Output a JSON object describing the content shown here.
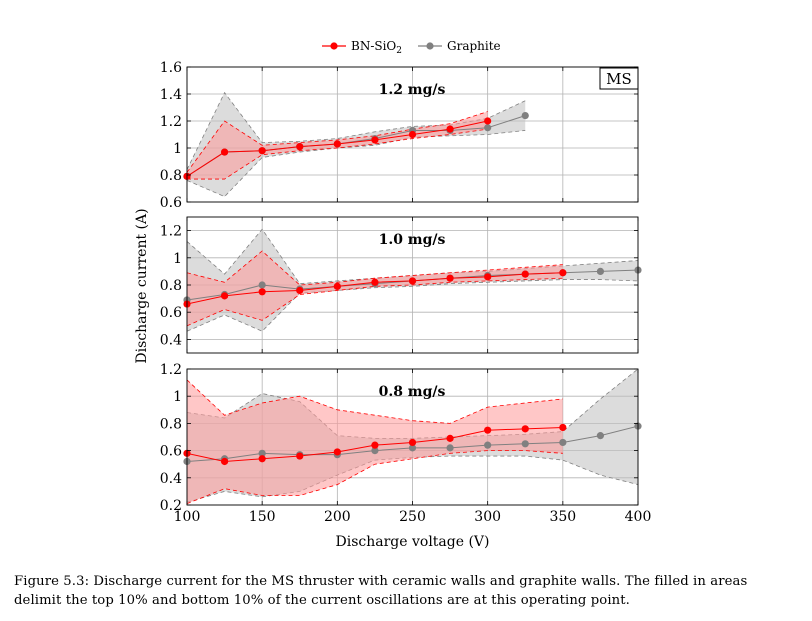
{
  "legend": [
    {
      "name": "BN-SiO",
      "sub": "2",
      "color": "#ff0000"
    },
    {
      "name": "Graphite",
      "sub": "",
      "color": "#808080"
    }
  ],
  "band_colors": {
    "bn_fill": "#ff9999",
    "bn_edge": "#ff0000",
    "gr_fill": "#bfbfbf",
    "gr_edge": "#808080"
  },
  "chart_data": {
    "type": "line",
    "shared_xlabel": "Discharge voltage (V)",
    "shared_ylabel": "Discharge current (A)",
    "x_ticks": [
      100,
      150,
      200,
      250,
      300,
      350,
      400
    ],
    "xlim": [
      100,
      400
    ],
    "panels": [
      {
        "title": "1.2 mg/s",
        "box_label": "MS",
        "ylim": [
          0.6,
          1.6
        ],
        "y_ticks": [
          0.6,
          0.8,
          1.0,
          1.2,
          1.4,
          1.6
        ],
        "series": [
          {
            "name": "BN-SiO2",
            "x": [
              100,
              125,
              150,
              175,
              200,
              225,
              250,
              275,
              300
            ],
            "y": [
              0.79,
              0.97,
              0.98,
              1.01,
              1.03,
              1.06,
              1.1,
              1.14,
              1.2
            ],
            "upper": [
              0.82,
              1.2,
              1.02,
              1.04,
              1.06,
              1.09,
              1.14,
              1.18,
              1.27
            ],
            "lower": [
              0.77,
              0.77,
              0.95,
              0.98,
              1.0,
              1.03,
              1.07,
              1.1,
              1.14
            ]
          },
          {
            "name": "Graphite",
            "x": [
              100,
              125,
              150,
              175,
              200,
              225,
              250,
              275,
              300,
              325
            ],
            "y": [
              0.79,
              0.97,
              0.98,
              1.01,
              1.03,
              1.07,
              1.13,
              1.13,
              1.15,
              1.24
            ],
            "upper": [
              0.84,
              1.41,
              1.04,
              1.05,
              1.07,
              1.12,
              1.16,
              1.17,
              1.22,
              1.35
            ],
            "lower": [
              0.76,
              0.64,
              0.93,
              0.97,
              1.0,
              1.02,
              1.08,
              1.09,
              1.1,
              1.13
            ]
          }
        ]
      },
      {
        "title": "1.0 mg/s",
        "box_label": "",
        "ylim": [
          0.3,
          1.3
        ],
        "y_ticks": [
          0.4,
          0.6,
          0.8,
          1.0,
          1.2
        ],
        "series": [
          {
            "name": "BN-SiO2",
            "x": [
              100,
              125,
              150,
              175,
              200,
              225,
              250,
              275,
              300,
              325,
              350
            ],
            "y": [
              0.66,
              0.72,
              0.75,
              0.76,
              0.79,
              0.82,
              0.83,
              0.85,
              0.86,
              0.88,
              0.89
            ],
            "upper": [
              0.89,
              0.82,
              1.05,
              0.8,
              0.82,
              0.85,
              0.87,
              0.89,
              0.91,
              0.93,
              0.95
            ],
            "lower": [
              0.5,
              0.62,
              0.54,
              0.73,
              0.76,
              0.79,
              0.8,
              0.82,
              0.83,
              0.84,
              0.85
            ]
          },
          {
            "name": "Graphite",
            "x": [
              100,
              125,
              150,
              175,
              200,
              225,
              250,
              275,
              300,
              325,
              350,
              375,
              400
            ],
            "y": [
              0.69,
              0.73,
              0.8,
              0.77,
              0.79,
              0.81,
              0.83,
              0.85,
              0.87,
              0.88,
              0.89,
              0.9,
              0.91
            ],
            "upper": [
              1.12,
              0.88,
              1.21,
              0.81,
              0.83,
              0.85,
              0.87,
              0.89,
              0.9,
              0.92,
              0.94,
              0.96,
              0.98
            ],
            "lower": [
              0.46,
              0.58,
              0.46,
              0.74,
              0.76,
              0.78,
              0.79,
              0.81,
              0.82,
              0.83,
              0.84,
              0.84,
              0.83
            ]
          }
        ]
      },
      {
        "title": "0.8 mg/s",
        "box_label": "",
        "ylim": [
          0.2,
          1.2
        ],
        "y_ticks": [
          0.2,
          0.4,
          0.6,
          0.8,
          1.0,
          1.2
        ],
        "series": [
          {
            "name": "BN-SiO2",
            "x": [
              100,
              125,
              150,
              175,
              200,
              225,
              250,
              275,
              300,
              325,
              350
            ],
            "y": [
              0.58,
              0.52,
              0.54,
              0.56,
              0.59,
              0.64,
              0.66,
              0.69,
              0.75,
              0.76,
              0.77
            ],
            "upper": [
              1.12,
              0.86,
              0.95,
              1.0,
              0.9,
              0.86,
              0.82,
              0.8,
              0.92,
              0.95,
              0.98
            ],
            "lower": [
              0.21,
              0.32,
              0.27,
              0.27,
              0.35,
              0.5,
              0.54,
              0.58,
              0.6,
              0.6,
              0.58
            ]
          },
          {
            "name": "Graphite",
            "x": [
              100,
              125,
              150,
              175,
              200,
              225,
              250,
              275,
              300,
              325,
              350,
              375,
              400
            ],
            "y": [
              0.52,
              0.54,
              0.58,
              0.57,
              0.57,
              0.6,
              0.62,
              0.62,
              0.64,
              0.65,
              0.66,
              0.71,
              0.78
            ],
            "upper": [
              0.88,
              0.84,
              1.02,
              0.96,
              0.71,
              0.69,
              0.69,
              0.7,
              0.71,
              0.72,
              0.74,
              0.98,
              1.2
            ],
            "lower": [
              0.22,
              0.3,
              0.26,
              0.3,
              0.42,
              0.53,
              0.55,
              0.56,
              0.56,
              0.56,
              0.53,
              0.42,
              0.35
            ]
          }
        ]
      }
    ]
  },
  "caption": "Figure 5.3: Discharge current for the MS thruster with ceramic walls and graphite walls. The filled in areas delimit the top 10% and bottom 10% of the current oscillations are at this operating point."
}
